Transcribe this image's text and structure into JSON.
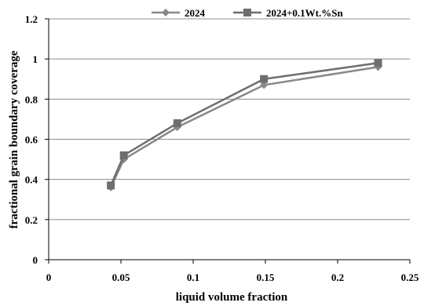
{
  "chart_data": {
    "type": "line",
    "title": "",
    "xlabel": "liquid volume fraction",
    "ylabel": "fractional grain boundary coverage",
    "xlim": [
      0,
      0.25
    ],
    "ylim": [
      0,
      1.2
    ],
    "x_ticks": [
      "0",
      "0.05",
      "0.1",
      "0.15",
      "0.2",
      "0.25"
    ],
    "y_ticks": [
      "0",
      "0.2",
      "0.4",
      "0.6",
      "0.8",
      "1",
      "1.2"
    ],
    "grid": "horizontal",
    "legend_position": "top",
    "series": [
      {
        "name": "2024",
        "marker": "diamond",
        "color": "#888888",
        "x": [
          0.043,
          0.052,
          0.089,
          0.149,
          0.228
        ],
        "y": [
          0.36,
          0.5,
          0.66,
          0.87,
          0.96
        ]
      },
      {
        "name": "2024+0.1Wt.%Sn",
        "marker": "square",
        "color": "#6e6e6e",
        "x": [
          0.043,
          0.052,
          0.089,
          0.149,
          0.228
        ],
        "y": [
          0.37,
          0.52,
          0.68,
          0.9,
          0.98
        ]
      }
    ]
  }
}
